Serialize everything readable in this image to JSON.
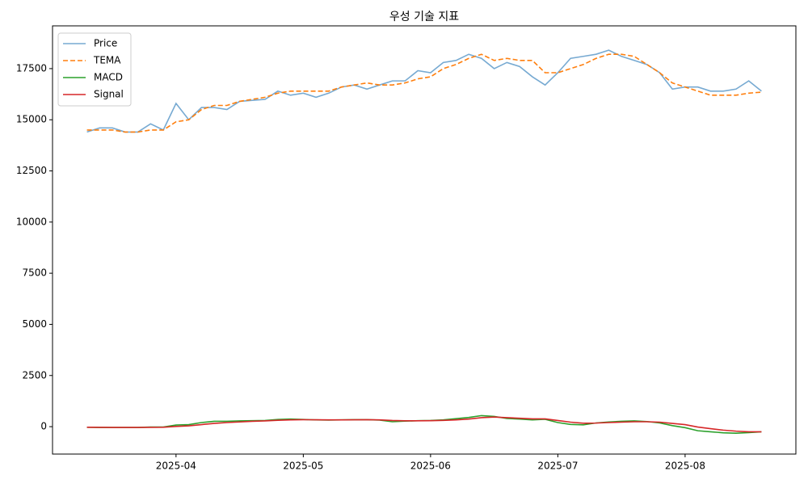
{
  "chart_data": {
    "type": "line",
    "title": "우성 기술 지표",
    "categories": [
      null,
      null,
      null,
      null,
      null,
      null,
      null,
      "2025-04",
      null,
      null,
      null,
      null,
      null,
      null,
      null,
      null,
      null,
      "2025-05",
      null,
      null,
      null,
      null,
      null,
      null,
      null,
      null,
      null,
      "2025-06",
      null,
      null,
      null,
      null,
      null,
      null,
      null,
      null,
      null,
      "2025-07",
      null,
      null,
      null,
      null,
      null,
      null,
      null,
      null,
      null,
      "2025-08",
      null,
      null,
      null,
      null,
      null,
      null
    ],
    "series": [
      {
        "name": "Price",
        "color": "#77aad2",
        "linestyle": "solid",
        "values": [
          14400,
          14600,
          14600,
          14400,
          14400,
          14800,
          14500,
          15800,
          15000,
          15600,
          15600,
          15500,
          15900,
          15950,
          16000,
          16400,
          16200,
          16300,
          16100,
          16300,
          16600,
          16700,
          16500,
          16700,
          16900,
          16900,
          17400,
          17300,
          17800,
          17900,
          18200,
          18000,
          17500,
          17800,
          17600,
          17100,
          16700,
          17300,
          18000,
          18100,
          18200,
          18400,
          18100,
          17900,
          17700,
          17300,
          16500,
          16600,
          16600,
          16400,
          16400,
          16500,
          16900,
          16400
        ]
      },
      {
        "name": "TEMA",
        "color": "#ff7f0e",
        "linestyle": "dashed",
        "values": [
          14500,
          14500,
          14500,
          14400,
          14400,
          14500,
          14500,
          14900,
          15000,
          15500,
          15700,
          15700,
          15900,
          16000,
          16100,
          16300,
          16400,
          16400,
          16400,
          16400,
          16600,
          16700,
          16800,
          16700,
          16700,
          16800,
          17000,
          17100,
          17500,
          17700,
          18000,
          18200,
          17900,
          18000,
          17900,
          17900,
          17300,
          17300,
          17500,
          17700,
          18000,
          18200,
          18200,
          18100,
          17700,
          17300,
          16800,
          16600,
          16400,
          16200,
          16200,
          16200,
          16300,
          16350
        ]
      },
      {
        "name": "MACD",
        "color": "#2ca02c",
        "linestyle": "solid",
        "values": [
          -30,
          -40,
          -40,
          -40,
          -40,
          -20,
          -20,
          80,
          100,
          200,
          260,
          260,
          280,
          290,
          300,
          350,
          370,
          350,
          330,
          320,
          330,
          340,
          340,
          320,
          240,
          270,
          290,
          300,
          330,
          390,
          450,
          540,
          500,
          400,
          370,
          330,
          360,
          200,
          110,
          90,
          180,
          230,
          260,
          280,
          250,
          180,
          50,
          -50,
          -200,
          -250,
          -300,
          -320,
          -290,
          -250
        ]
      },
      {
        "name": "Signal",
        "color": "#d62728",
        "linestyle": "solid",
        "values": [
          -30,
          -35,
          -38,
          -40,
          -40,
          -35,
          -30,
          10,
          40,
          100,
          160,
          200,
          230,
          260,
          280,
          310,
          330,
          340,
          335,
          330,
          330,
          335,
          340,
          330,
          300,
          285,
          285,
          290,
          305,
          330,
          370,
          440,
          470,
          440,
          410,
          380,
          380,
          300,
          220,
          170,
          175,
          200,
          220,
          240,
          240,
          220,
          160,
          100,
          -20,
          -100,
          -170,
          -220,
          -250,
          -250
        ]
      }
    ],
    "ylim": [
      -1340,
      19590
    ],
    "yticks": [
      0,
      2500,
      5000,
      7500,
      10000,
      12500,
      15000,
      17500
    ],
    "legend": "upper left",
    "grid": false
  }
}
